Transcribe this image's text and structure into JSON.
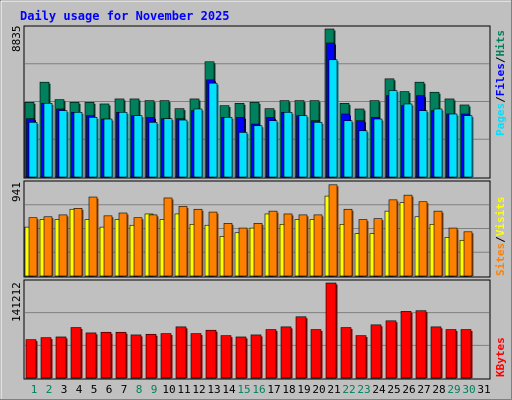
{
  "chart_data": [
    {
      "type": "bar",
      "title": "Daily usage for November 2025",
      "categories": [
        "1",
        "2",
        "3",
        "4",
        "5",
        "6",
        "7",
        "8",
        "9",
        "10",
        "11",
        "12",
        "13",
        "14",
        "15",
        "16",
        "17",
        "18",
        "19",
        "20",
        "21",
        "22",
        "23",
        "24",
        "25",
        "26",
        "27",
        "28",
        "29",
        "30",
        "31"
      ],
      "weekend_days": [
        "1",
        "2",
        "8",
        "9",
        "15",
        "16",
        "22",
        "23",
        "29",
        "30"
      ],
      "y_tick_label": "8835",
      "ylim": [
        0,
        8835
      ],
      "series": [
        {
          "name": "Hits",
          "color": "#00805c",
          "values": [
            4460,
            5660,
            4620,
            4460,
            4460,
            4360,
            4660,
            4660,
            4560,
            4560,
            4080,
            4660,
            6880,
            4260,
            4400,
            4460,
            4080,
            4560,
            4560,
            4560,
            8835,
            4400,
            4060,
            4560,
            5860,
            5100,
            5660,
            5060,
            4660,
            4300,
            0
          ]
        },
        {
          "name": "Files",
          "color": "#0000ff",
          "values": [
            3480,
            4400,
            4060,
            3860,
            3660,
            3460,
            3860,
            3660,
            3560,
            3480,
            3480,
            3960,
            5800,
            3560,
            3560,
            3160,
            3560,
            3860,
            3660,
            3360,
            8000,
            3760,
            3360,
            3560,
            4860,
            4260,
            4860,
            3960,
            3760,
            3760,
            0
          ]
        },
        {
          "name": "Pages",
          "color": "#00e0ff",
          "values": [
            3260,
            4400,
            3960,
            3860,
            3560,
            3460,
            3860,
            3660,
            3260,
            3480,
            3400,
            4060,
            5600,
            3560,
            2660,
            3060,
            3360,
            3860,
            3660,
            3260,
            7000,
            3360,
            2760,
            3460,
            5160,
            4360,
            3960,
            4060,
            3760,
            3660,
            0
          ]
        }
      ]
    },
    {
      "type": "bar",
      "categories": [
        "1",
        "2",
        "3",
        "4",
        "5",
        "6",
        "7",
        "8",
        "9",
        "10",
        "11",
        "12",
        "13",
        "14",
        "15",
        "16",
        "17",
        "18",
        "19",
        "20",
        "21",
        "22",
        "23",
        "24",
        "25",
        "26",
        "27",
        "28",
        "29",
        "30",
        "31"
      ],
      "y_tick_label": "941",
      "ylim": [
        0,
        941
      ],
      "series": [
        {
          "name": "Visits",
          "color": "#ffff00",
          "values": [
            520,
            600,
            600,
            710,
            600,
            520,
            600,
            540,
            660,
            600,
            660,
            550,
            540,
            420,
            460,
            510,
            660,
            550,
            600,
            600,
            850,
            550,
            450,
            450,
            690,
            780,
            630,
            550,
            410,
            380,
            0
          ]
        },
        {
          "name": "Sites",
          "color": "#ff8000",
          "values": [
            620,
            630,
            650,
            720,
            840,
            640,
            670,
            620,
            650,
            830,
            740,
            710,
            680,
            560,
            510,
            560,
            690,
            660,
            650,
            650,
            970,
            710,
            600,
            610,
            810,
            860,
            790,
            690,
            510,
            470,
            0
          ]
        }
      ]
    },
    {
      "type": "bar",
      "categories": [
        "1",
        "2",
        "3",
        "4",
        "5",
        "6",
        "7",
        "8",
        "9",
        "10",
        "11",
        "12",
        "13",
        "14",
        "15",
        "16",
        "17",
        "18",
        "19",
        "20",
        "21",
        "22",
        "23",
        "24",
        "25",
        "26",
        "27",
        "28",
        "29",
        "30",
        "31"
      ],
      "y_tick_label": "141212",
      "ylim": [
        0,
        141212
      ],
      "series": [
        {
          "name": "KBytes",
          "color": "#ff0000",
          "values": [
            57000,
            60000,
            61000,
            75000,
            67000,
            68000,
            68000,
            64000,
            65000,
            66000,
            76000,
            66000,
            71000,
            63000,
            61000,
            64000,
            72000,
            76000,
            91000,
            72000,
            141212,
            75000,
            63000,
            79000,
            85000,
            99000,
            100000,
            76000,
            72000,
            72000,
            0
          ]
        }
      ]
    }
  ]
}
